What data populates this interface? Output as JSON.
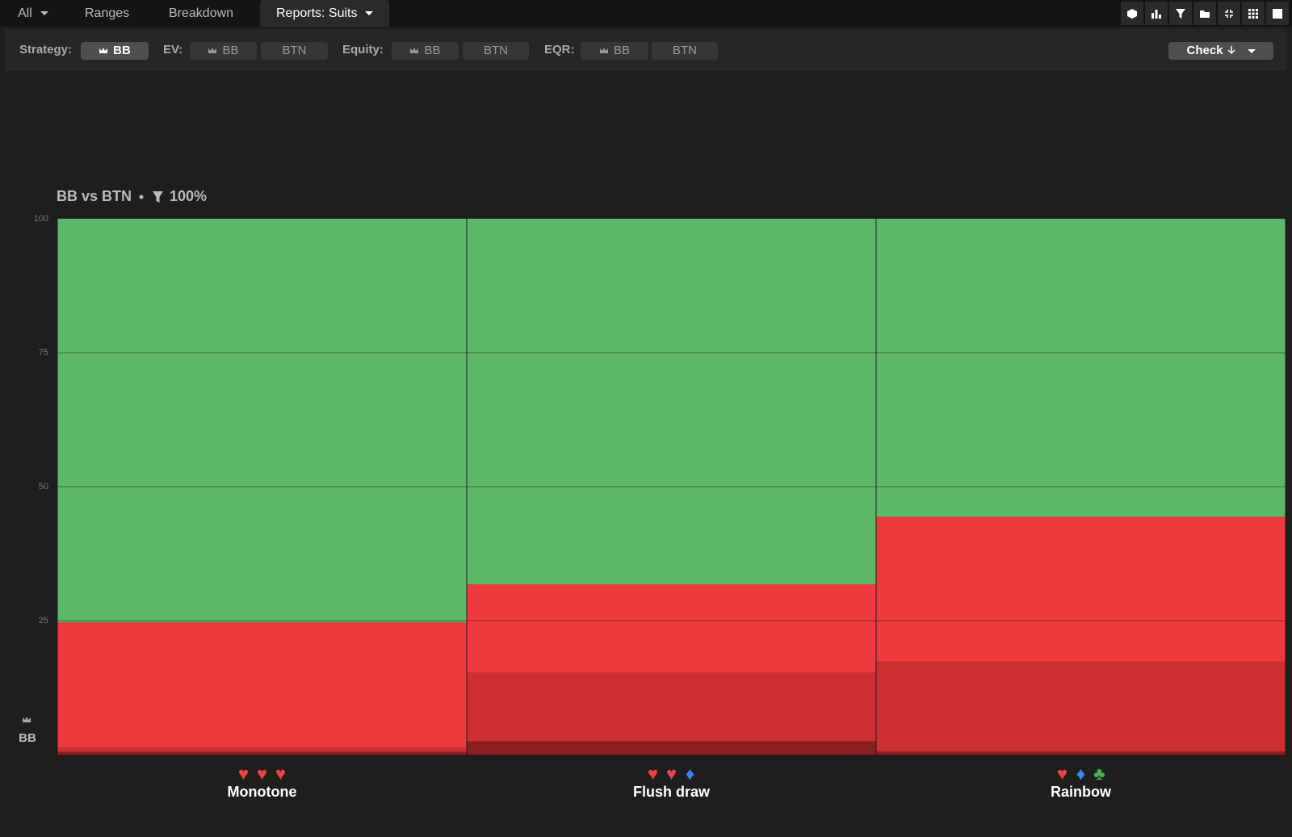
{
  "tabs": {
    "items": [
      "All",
      "Ranges",
      "Breakdown",
      "Reports: Suits"
    ],
    "active": 3
  },
  "toolbar": {
    "strategy_label": "Strategy:",
    "strategy_bb": "BB",
    "ev_label": "EV:",
    "ev_bb": "BB",
    "ev_btn": "BTN",
    "equity_label": "Equity:",
    "equity_bb": "BB",
    "equity_btn": "BTN",
    "eqr_label": "EQR:",
    "eqr_bb": "BB",
    "eqr_btn": "BTN",
    "action": "Check"
  },
  "chart_data": {
    "type": "stacked_bar",
    "title": "BB vs BTN",
    "filter": "100%",
    "ylabel": "BB",
    "categories": [
      "Monotone",
      "Flush draw",
      "Rainbow"
    ],
    "suits": [
      [
        "♥",
        "♥",
        "♥"
      ],
      [
        "♥",
        "♥",
        "♦"
      ],
      [
        "♥",
        "♦",
        "♣"
      ]
    ],
    "suit_colors": {
      "♥": "#ec4444",
      "♦": "#3b82f6",
      "♣": "#4caf50"
    },
    "series": [
      {
        "color": "#8b1e1e",
        "values": [
          0.5,
          2.5,
          0.6
        ]
      },
      {
        "color": "#cc2f2f",
        "values": [
          0.8,
          12.8,
          16.8
        ]
      },
      {
        "color": "#ef3a3d",
        "values": [
          23.4,
          16.5,
          27.0
        ]
      },
      {
        "color": "#5cb868",
        "values": [
          75.3,
          68.2,
          55.6
        ]
      }
    ],
    "ylim": [
      0,
      100
    ],
    "yticks": [
      25,
      50,
      75,
      100
    ],
    "grid": true
  }
}
